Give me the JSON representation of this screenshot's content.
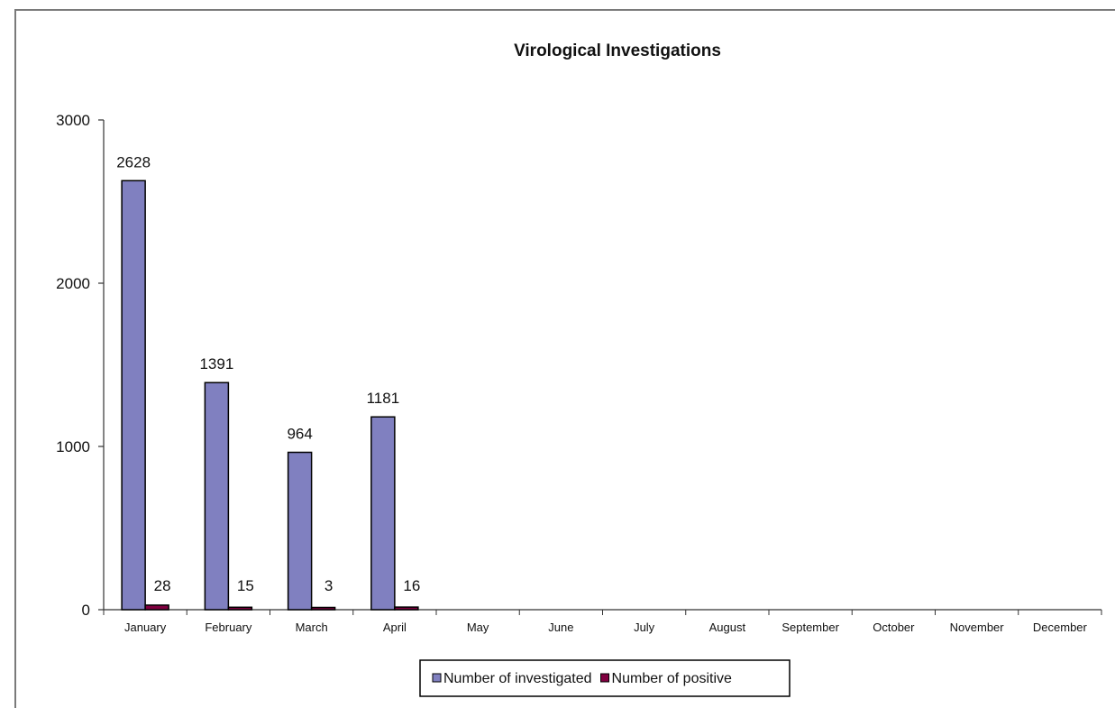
{
  "chart_data": {
    "type": "bar",
    "title": "Virological Investigations",
    "xlabel": "",
    "ylabel": "",
    "ylim": [
      0,
      3000
    ],
    "yticks": [
      0,
      1000,
      2000,
      3000
    ],
    "categories": [
      "January",
      "February",
      "March",
      "April",
      "May",
      "June",
      "July",
      "August",
      "September",
      "October",
      "November",
      "December"
    ],
    "series": [
      {
        "name": "Number of investigated",
        "color": "#8080c0",
        "values": [
          2628,
          1391,
          964,
          1181,
          null,
          null,
          null,
          null,
          null,
          null,
          null,
          null
        ]
      },
      {
        "name": "Number of positive",
        "color": "#800040",
        "values": [
          28,
          15,
          3,
          16,
          null,
          null,
          null,
          null,
          null,
          null,
          null,
          null
        ]
      }
    ],
    "data_labels": true,
    "grid": false,
    "legend_position": "bottom"
  }
}
